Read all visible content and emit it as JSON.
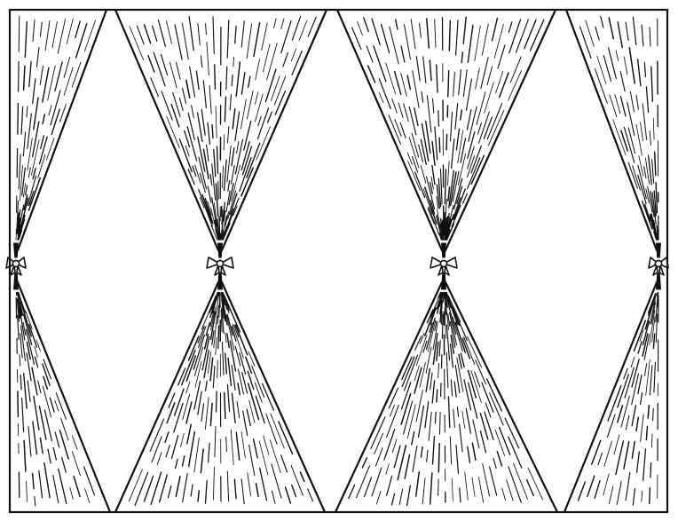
{
  "illustration": {
    "subject": "drapery-festoons",
    "ink_color": "#111111",
    "paper_color": "#ffffff",
    "columns": 4,
    "gathered_points": 4
  }
}
